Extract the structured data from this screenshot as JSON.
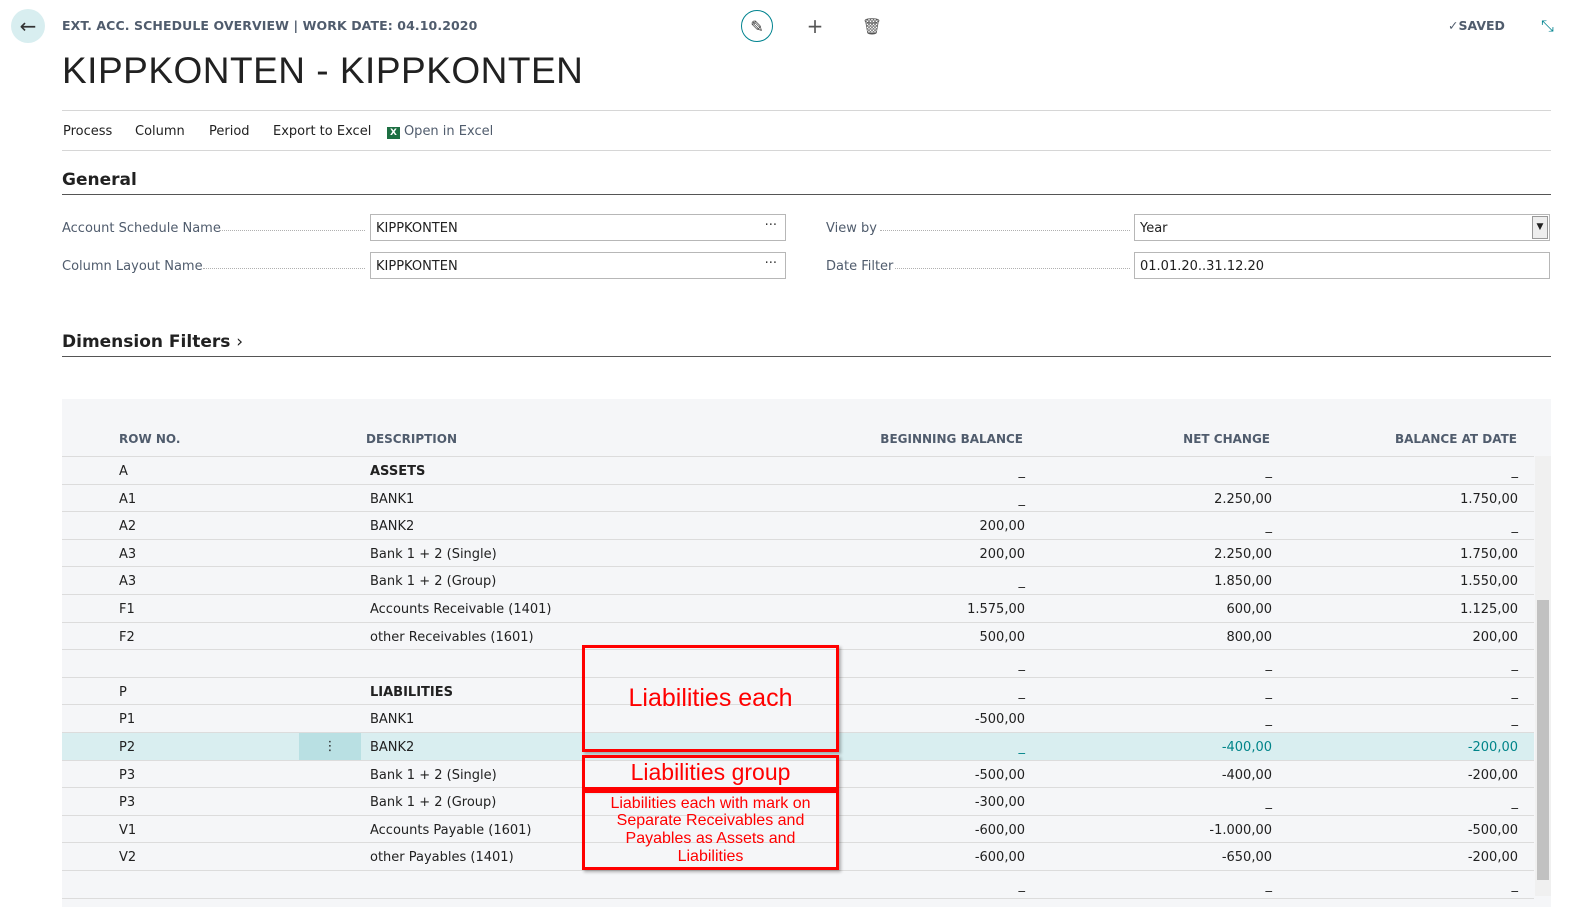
{
  "header": {
    "caption": "EXT. ACC. SCHEDULE OVERVIEW | WORK DATE: 04.10.2020",
    "title": "KIPPKONTEN - KIPPKONTEN",
    "status": "SAVED"
  },
  "menu": [
    "Process",
    "Column",
    "Period",
    "Export to Excel",
    "Open in Excel"
  ],
  "general": {
    "heading": "General",
    "account_schedule_label": "Account Schedule Name",
    "account_schedule_value": "KIPPKONTEN",
    "column_layout_label": "Column Layout Name",
    "column_layout_value": "KIPPKONTEN",
    "view_by_label": "View by",
    "view_by_value": "Year",
    "date_filter_label": "Date Filter",
    "date_filter_value": "01.01.20..31.12.20"
  },
  "dimension_filters": "Dimension Filters",
  "table": {
    "headers": [
      "ROW NO.",
      "DESCRIPTION",
      "BEGINNING BALANCE",
      "NET CHANGE",
      "BALANCE AT DATE"
    ],
    "rows": [
      [
        "A",
        "ASSETS",
        "_",
        "_",
        "_"
      ],
      [
        "A1",
        "BANK1",
        "_",
        "2.250,00",
        "1.750,00"
      ],
      [
        "A2",
        "BANK2",
        "200,00",
        "_",
        "_"
      ],
      [
        "A3",
        "Bank 1 + 2 (Single)",
        "200,00",
        "2.250,00",
        "1.750,00"
      ],
      [
        "A3",
        "Bank 1 + 2 (Group)",
        "_",
        "1.850,00",
        "1.550,00"
      ],
      [
        "F1",
        "Accounts Receivable (1401)",
        "1.575,00",
        "600,00",
        "1.125,00"
      ],
      [
        "F2",
        "other Receivables (1601)",
        "500,00",
        "800,00",
        "200,00"
      ],
      [
        "",
        "",
        "_",
        "_",
        "_"
      ],
      [
        "P",
        "LIABILITIES",
        "_",
        "_",
        "_"
      ],
      [
        "P1",
        "BANK1",
        "-500,00",
        "_",
        "_"
      ],
      [
        "P2",
        "BANK2",
        "_",
        "-400,00",
        "-200,00"
      ],
      [
        "P3",
        "Bank 1 + 2 (Single)",
        "-500,00",
        "-400,00",
        "-200,00"
      ],
      [
        "P3",
        "Bank 1 + 2 (Group)",
        "-300,00",
        "_",
        "_"
      ],
      [
        "V1",
        "Accounts Payable (1601)",
        "-600,00",
        "-1.000,00",
        "-500,00"
      ],
      [
        "V2",
        "other Payables (1401)",
        "-600,00",
        "-650,00",
        "-200,00"
      ],
      [
        "",
        "",
        "_",
        "_",
        "_"
      ]
    ]
  },
  "annotations": [
    "Liabilities each",
    "Liabilities group",
    "Liabilities each with mark on Separate Receivables and Payables as Assets and Liabilities"
  ]
}
